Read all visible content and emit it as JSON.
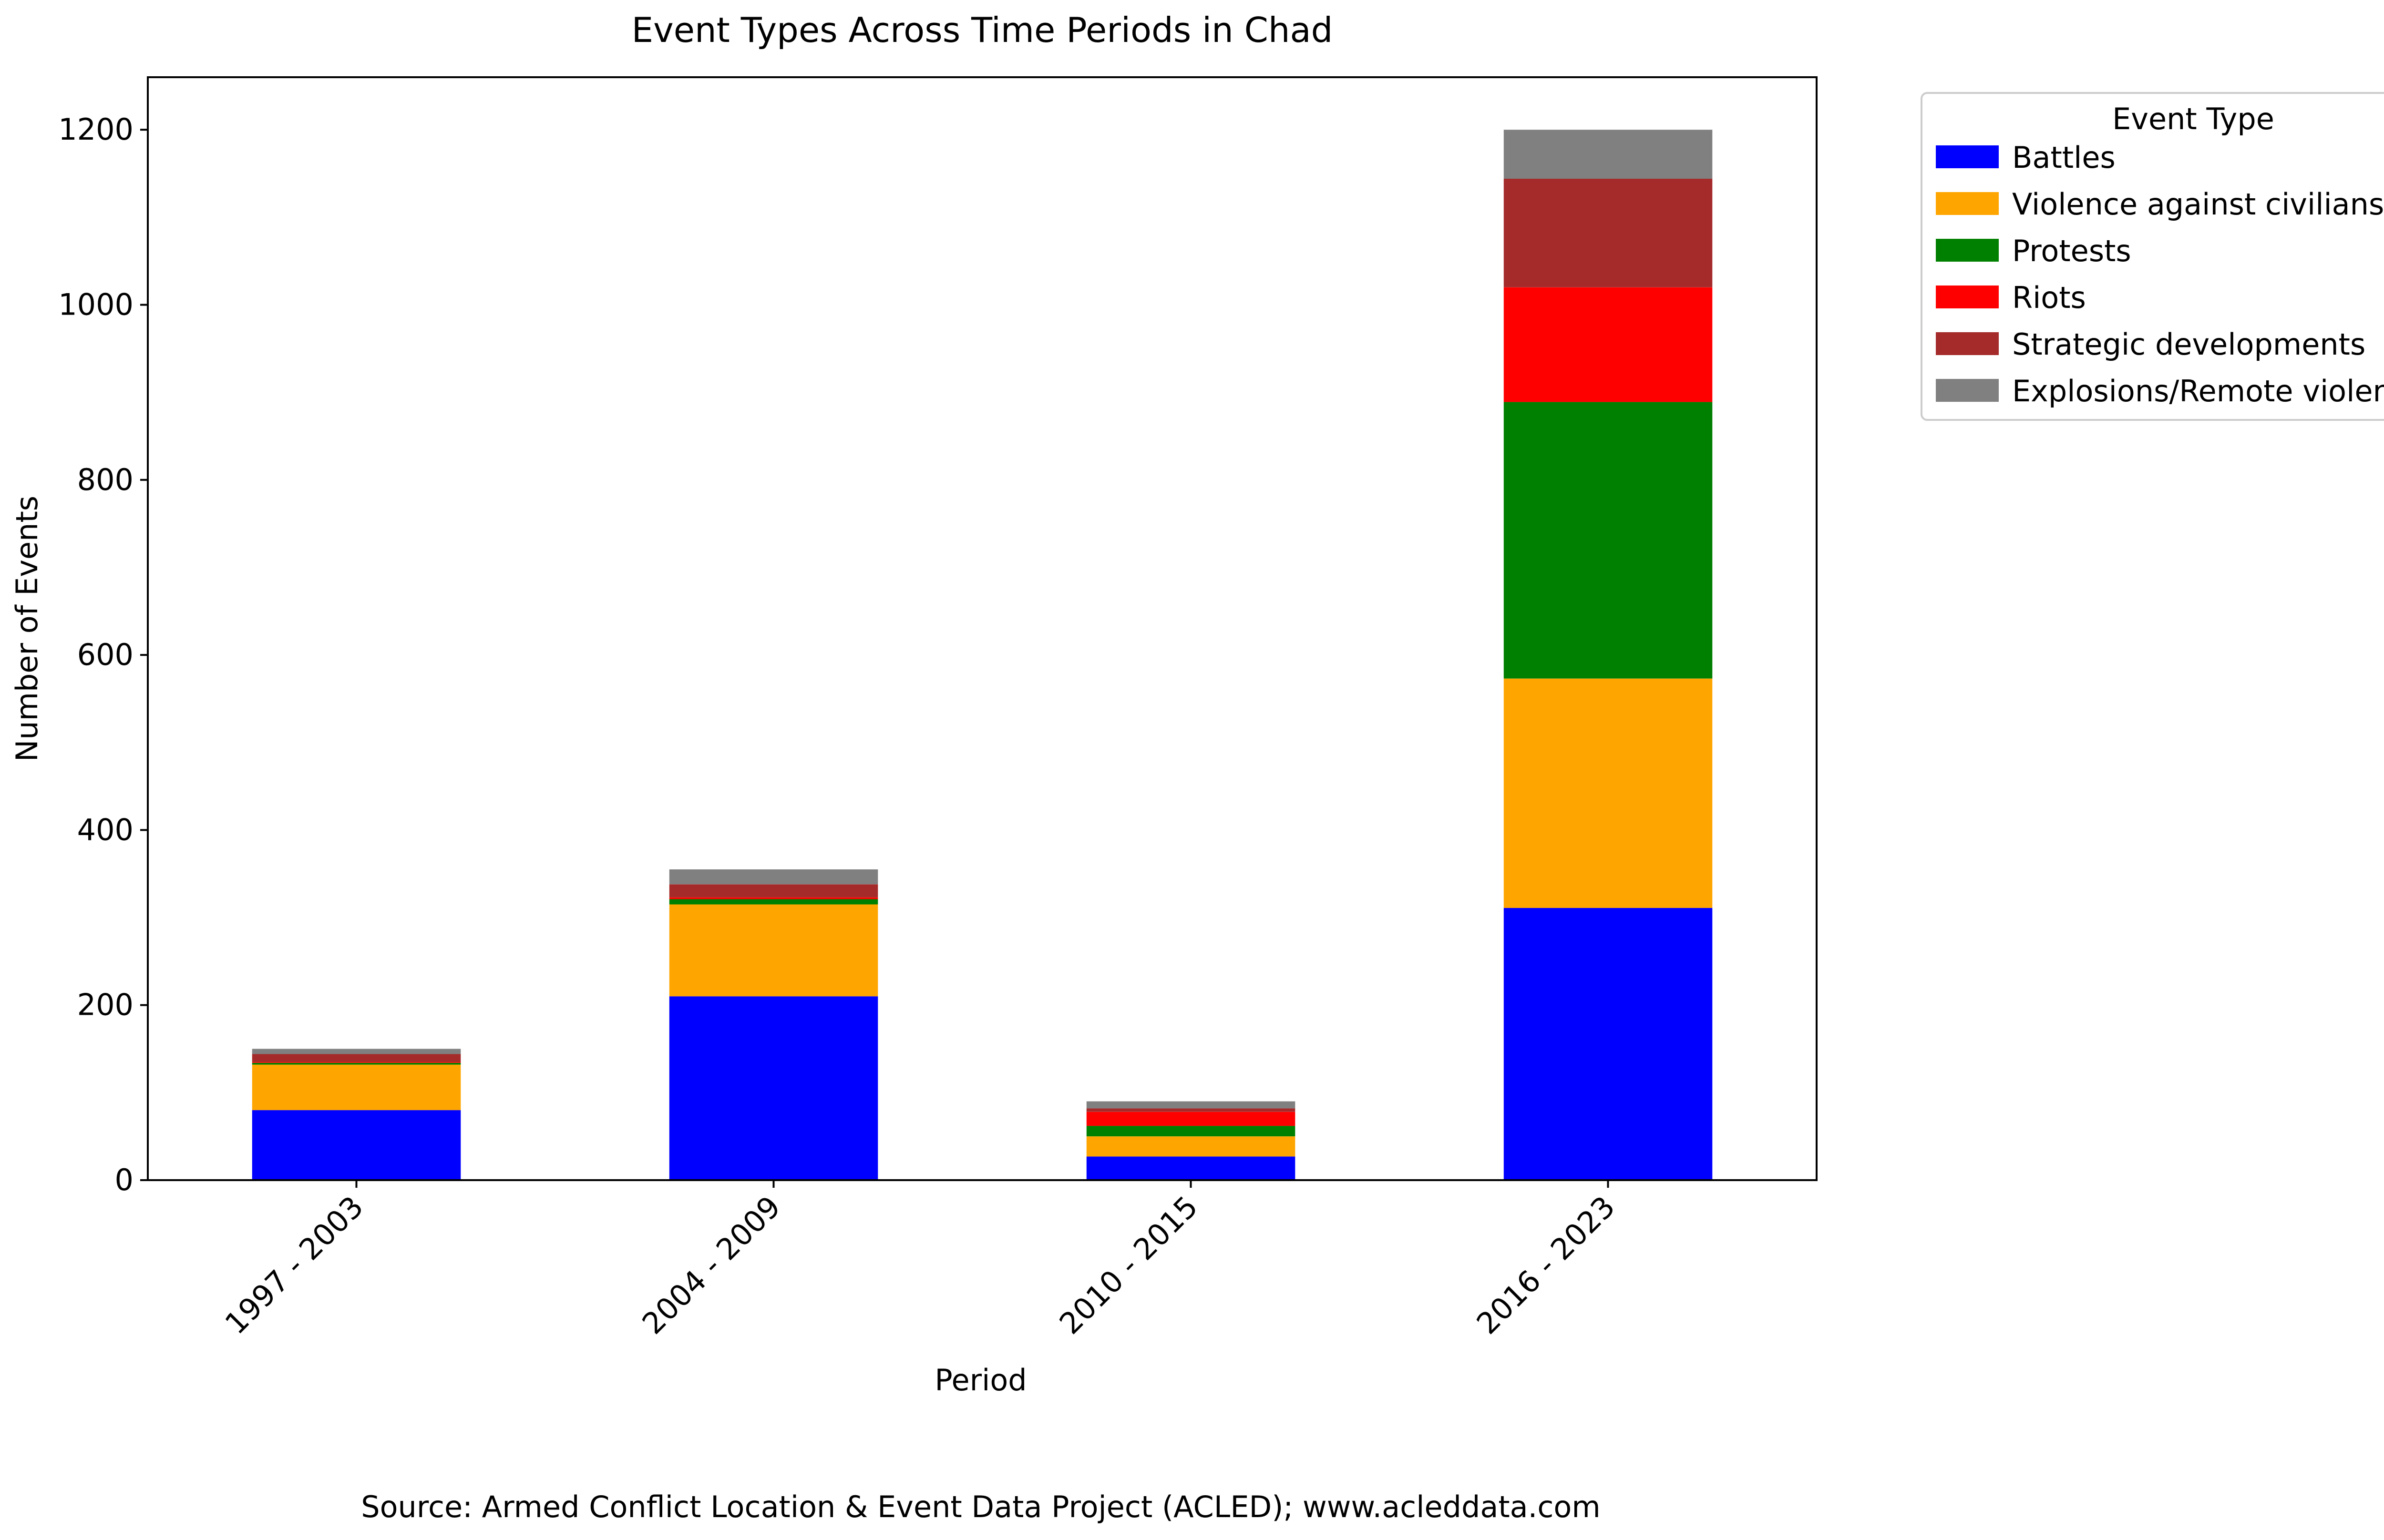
{
  "chart_data": {
    "type": "bar",
    "stacked": true,
    "title": "Event Types Across Time Periods in Chad",
    "xlabel": "Period",
    "ylabel": "Number of Events",
    "categories": [
      "1997 - 2003",
      "2004 - 2009",
      "2010 - 2015",
      "2016 - 2023"
    ],
    "ylim": [
      0,
      1260
    ],
    "yticks": [
      0,
      200,
      400,
      600,
      800,
      1000,
      1200
    ],
    "grid": false,
    "legend": {
      "title": "Event Type",
      "placement": "outside-top-right"
    },
    "series": [
      {
        "name": "Battles",
        "color": "#0000ff",
        "values": [
          80,
          210,
          27,
          311
        ]
      },
      {
        "name": "Violence against civilians",
        "color": "#ffa500",
        "values": [
          52,
          105,
          23,
          262
        ]
      },
      {
        "name": "Protests",
        "color": "#008000",
        "values": [
          2,
          6,
          12,
          316
        ]
      },
      {
        "name": "Riots",
        "color": "#ff0000",
        "values": [
          1,
          2,
          16,
          131
        ]
      },
      {
        "name": "Strategic developments",
        "color": "#a52a2a",
        "values": [
          9,
          15,
          4,
          124
        ]
      },
      {
        "name": "Explosions/Remote violence",
        "color": "#808080",
        "values": [
          6,
          17,
          8,
          56
        ]
      }
    ]
  },
  "source_note": "Source: Armed Conflict Location & Event Data Project (ACLED); www.acleddata.com"
}
